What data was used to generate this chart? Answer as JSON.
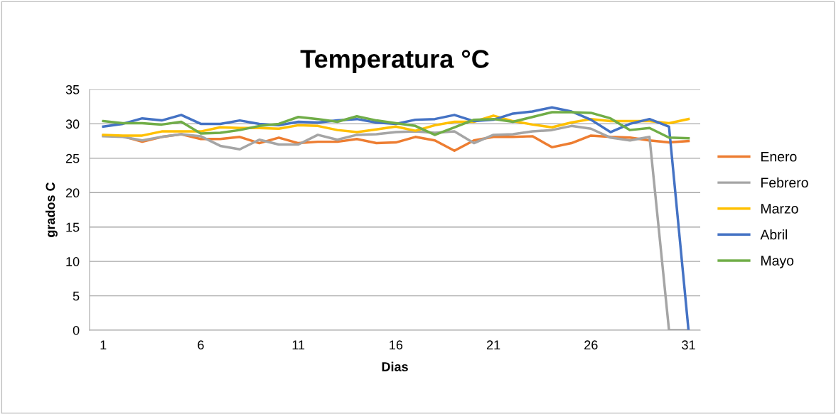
{
  "chart_data": {
    "type": "line",
    "title": "Temperatura °C",
    "xlabel": "Dias",
    "ylabel": "grados C",
    "x": [
      1,
      2,
      3,
      4,
      5,
      6,
      7,
      8,
      9,
      10,
      11,
      12,
      13,
      14,
      15,
      16,
      17,
      18,
      19,
      20,
      21,
      22,
      23,
      24,
      25,
      26,
      27,
      28,
      29,
      30,
      31
    ],
    "xlim": [
      0.3,
      31.6
    ],
    "xticks": [
      1,
      6,
      11,
      16,
      21,
      26,
      31
    ],
    "ylim": [
      0,
      35
    ],
    "yticks": [
      0,
      5,
      10,
      15,
      20,
      25,
      30,
      35
    ],
    "grid": "y",
    "legend": "right",
    "marker": "none",
    "line_style": "solid",
    "series": [
      {
        "name": "Enero",
        "color": "#ed7d31",
        "values": [
          28.3,
          28.2,
          27.4,
          28.1,
          28.5,
          27.8,
          27.8,
          28.1,
          27.2,
          28.0,
          27.2,
          27.4,
          27.4,
          27.8,
          27.2,
          27.3,
          28.1,
          27.6,
          26.1,
          27.6,
          28.1,
          28.1,
          28.2,
          26.6,
          27.2,
          28.3,
          28.1,
          28.0,
          27.6,
          27.3,
          27.5
        ]
      },
      {
        "name": "Febrero",
        "color": "#a5a5a5",
        "values": [
          28.2,
          28.1,
          27.6,
          28.1,
          28.5,
          28.2,
          26.8,
          26.3,
          27.7,
          27.0,
          27.0,
          28.4,
          27.7,
          28.4,
          28.5,
          28.8,
          28.9,
          28.7,
          28.9,
          27.2,
          28.4,
          28.5,
          28.9,
          29.1,
          29.7,
          29.3,
          28.0,
          27.6,
          28.1,
          0,
          0
        ]
      },
      {
        "name": "Marzo",
        "color": "#ffc000",
        "values": [
          28.4,
          28.3,
          28.3,
          28.9,
          28.9,
          28.9,
          29.5,
          29.4,
          29.4,
          29.3,
          29.8,
          29.7,
          29.1,
          28.8,
          29.2,
          29.6,
          29.0,
          29.8,
          30.3,
          30.3,
          31.2,
          30.4,
          29.9,
          29.5,
          30.2,
          30.7,
          30.4,
          30.4,
          30.4,
          30.1,
          30.7
        ]
      },
      {
        "name": "Abril",
        "color": "#4472c4",
        "values": [
          29.6,
          30.0,
          30.8,
          30.5,
          31.3,
          30.0,
          30.0,
          30.5,
          30.0,
          29.8,
          30.3,
          30.2,
          30.5,
          30.7,
          30.2,
          30.0,
          30.6,
          30.7,
          31.3,
          30.4,
          30.6,
          31.5,
          31.8,
          32.4,
          31.8,
          30.6,
          28.8,
          30.0,
          30.7,
          29.6,
          0
        ]
      },
      {
        "name": "Mayo",
        "color": "#70ad47",
        "values": [
          30.4,
          30.1,
          30.1,
          29.9,
          30.3,
          28.6,
          28.7,
          29.1,
          29.7,
          30.0,
          31.0,
          30.7,
          30.3,
          31.1,
          30.5,
          30.1,
          29.7,
          28.4,
          29.5,
          30.6,
          30.7,
          30.3,
          31.0,
          31.7,
          31.7,
          31.6,
          30.8,
          29.1,
          29.4,
          28.0,
          27.9
        ]
      }
    ]
  }
}
